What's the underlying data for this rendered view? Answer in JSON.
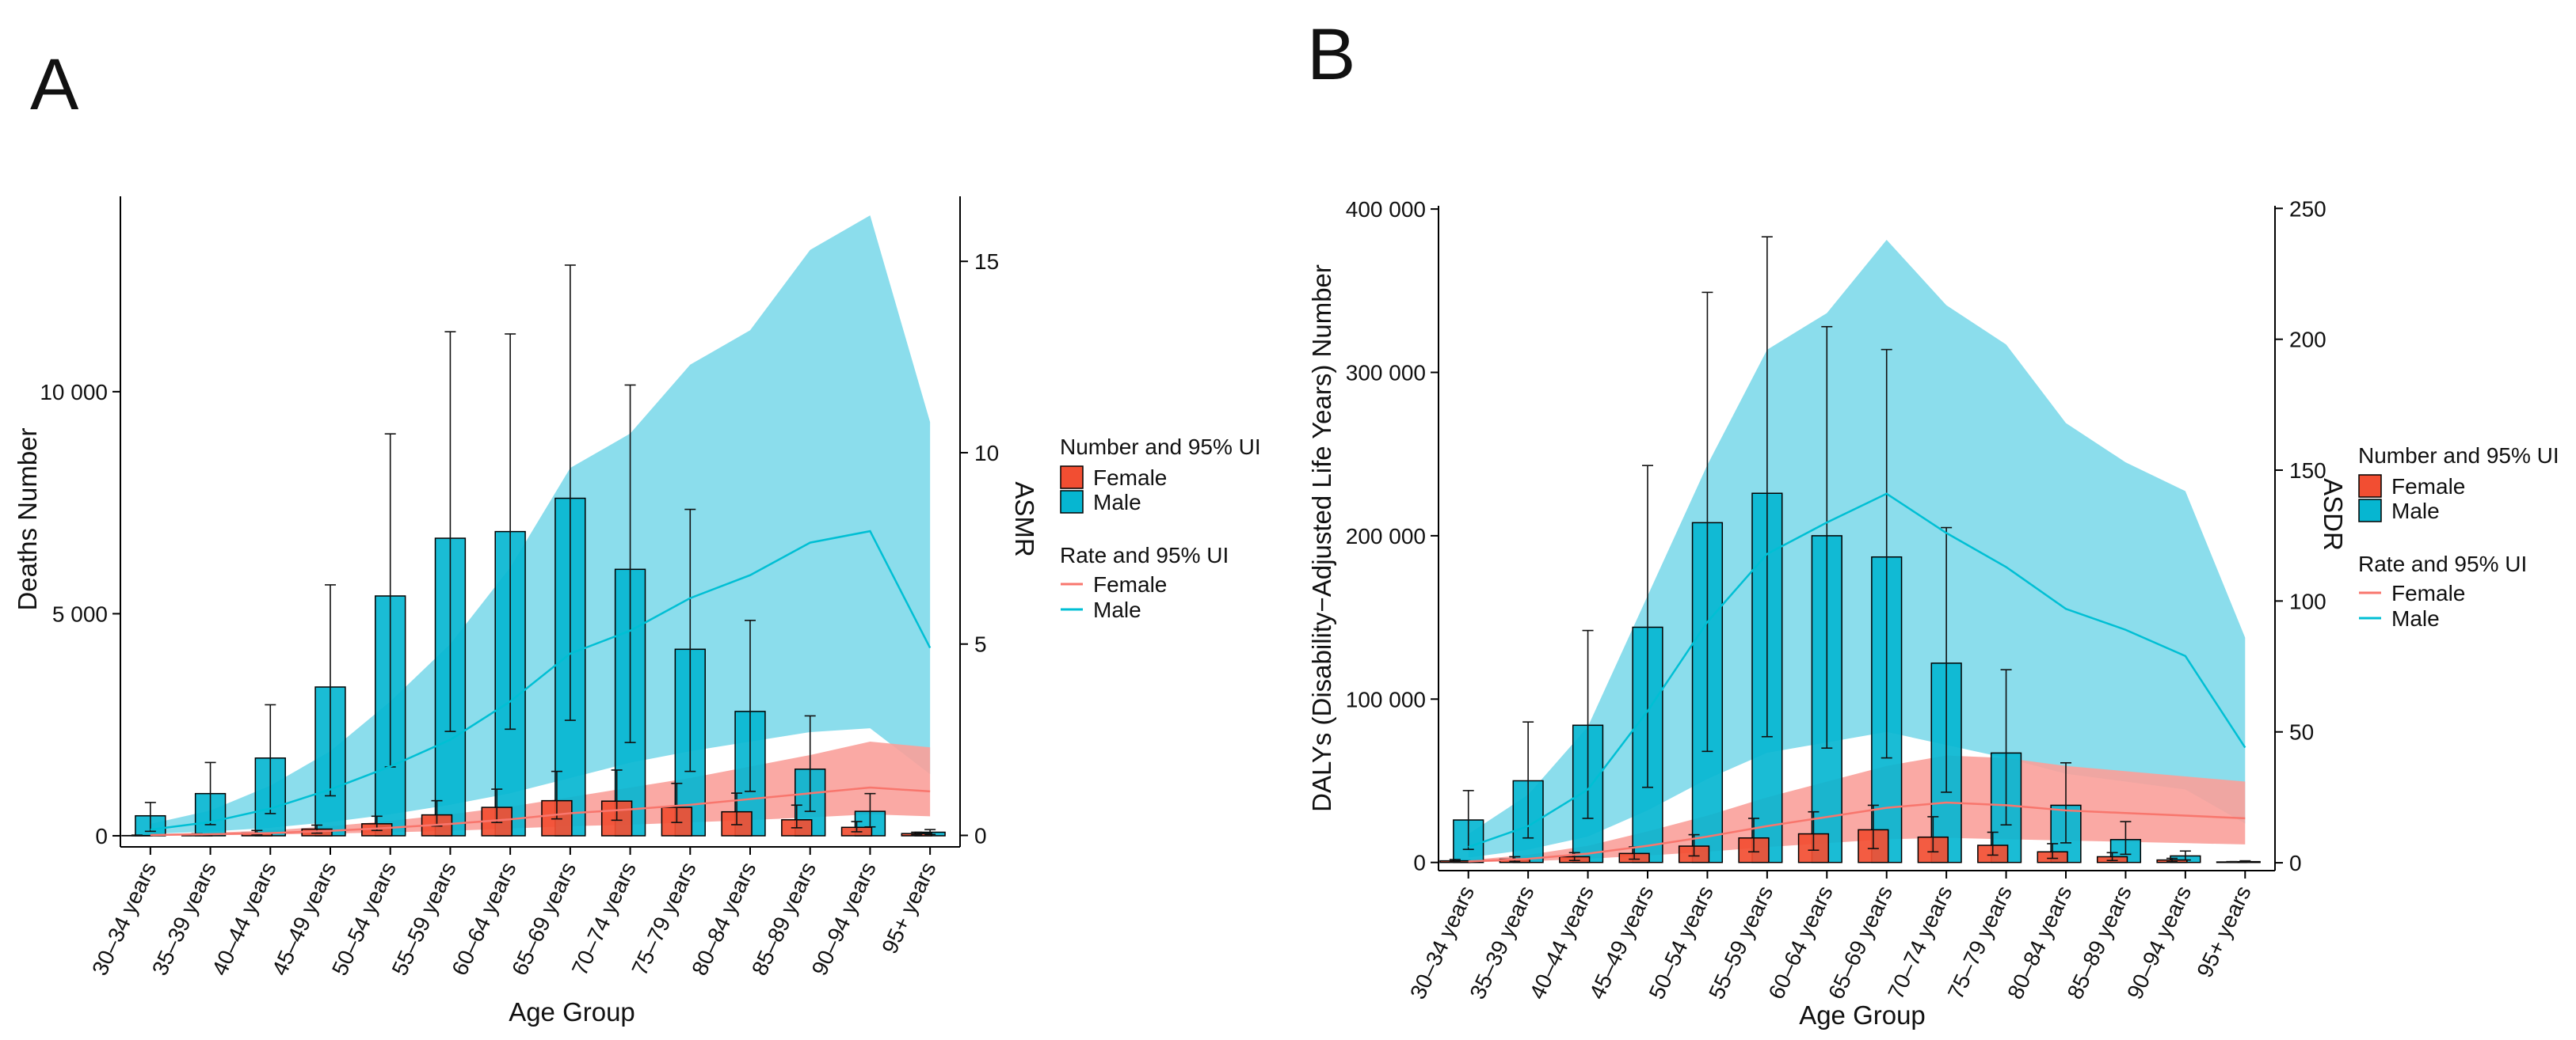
{
  "colors": {
    "female": "#F8766D",
    "female_bar": "#F24E32",
    "male": "#00BFD4",
    "male_bar": "#06B6D1",
    "female_band": "#F9A09A",
    "male_band": "#7ED9EA"
  },
  "chart_data": [
    {
      "type": "bar",
      "panel": "A",
      "title": "",
      "xlabel": "Age Group",
      "ylabel": "Deaths Number",
      "ylabel_right": "ASMR",
      "ylim": [
        -250,
        14400
      ],
      "ylim_right": [
        -0.3,
        16.7
      ],
      "yticks": [
        0,
        5000,
        10000
      ],
      "yticks_labels": [
        "0",
        "5 000",
        "10 000"
      ],
      "yticks_right": [
        0,
        5,
        10,
        15
      ],
      "yticks_right_labels": [
        "0",
        "5",
        "10",
        "15"
      ],
      "categories": [
        "30–34 years",
        "35–39 years",
        "40–44 years",
        "45–49 years",
        "50–54 years",
        "55–59 years",
        "60–64 years",
        "65–69 years",
        "70–74 years",
        "75–79 years",
        "80–84 years",
        "85–89 years",
        "90–94 years",
        "95+ years"
      ],
      "series": [
        {
          "name": "Female",
          "kind": "bar",
          "values": [
            5,
            20,
            60,
            150,
            270,
            470,
            640,
            790,
            780,
            640,
            540,
            360,
            190,
            50
          ],
          "lower": [
            0,
            5,
            20,
            60,
            120,
            220,
            300,
            380,
            350,
            300,
            250,
            180,
            90,
            20
          ],
          "upper": [
            15,
            45,
            120,
            240,
            440,
            790,
            1050,
            1450,
            1480,
            1180,
            960,
            690,
            320,
            80
          ]
        },
        {
          "name": "Male",
          "kind": "bar",
          "values": [
            450,
            950,
            1750,
            3350,
            5400,
            6700,
            6850,
            7600,
            6000,
            4200,
            2800,
            1500,
            550,
            80
          ],
          "lower": [
            100,
            250,
            500,
            900,
            1550,
            2350,
            2400,
            2600,
            2100,
            1450,
            1000,
            550,
            200,
            30
          ],
          "upper": [
            750,
            1650,
            2950,
            5650,
            9050,
            11350,
            11300,
            12850,
            10150,
            7350,
            4850,
            2700,
            950,
            140
          ]
        },
        {
          "name": "Female",
          "kind": "rate",
          "values": [
            0.01,
            0.03,
            0.06,
            0.12,
            0.2,
            0.3,
            0.42,
            0.58,
            0.68,
            0.8,
            0.95,
            1.1,
            1.25,
            1.15
          ],
          "lower": [
            0.0,
            0.01,
            0.02,
            0.05,
            0.08,
            0.12,
            0.18,
            0.24,
            0.28,
            0.34,
            0.4,
            0.47,
            0.55,
            0.5
          ],
          "upper": [
            0.03,
            0.07,
            0.13,
            0.24,
            0.38,
            0.55,
            0.75,
            1.0,
            1.25,
            1.5,
            1.8,
            2.1,
            2.45,
            2.3
          ]
        },
        {
          "name": "Male",
          "kind": "rate",
          "values": [
            0.15,
            0.35,
            0.7,
            1.2,
            1.8,
            2.5,
            3.5,
            4.75,
            5.35,
            6.2,
            6.8,
            7.65,
            7.95,
            4.9
          ],
          "lower": [
            0.04,
            0.1,
            0.2,
            0.35,
            0.55,
            0.8,
            1.1,
            1.5,
            1.9,
            2.2,
            2.45,
            2.7,
            2.8,
            1.6
          ],
          "upper": [
            0.3,
            0.65,
            1.3,
            2.2,
            3.5,
            5.0,
            7.0,
            9.6,
            10.5,
            12.3,
            13.2,
            15.3,
            16.2,
            10.8
          ]
        }
      ],
      "legend": {
        "title_number": "Number and 95% UI",
        "title_rate": "Rate and 95% UI",
        "female": "Female",
        "male": "Male"
      }
    },
    {
      "type": "bar",
      "panel": "B",
      "title": "",
      "xlabel": "Age Group",
      "ylabel": "DALYs (Disability−Adjusted Life Years) Number",
      "ylabel_right": "ASDR",
      "ylim": [
        -5000,
        402000
      ],
      "ylim_right": [
        -3,
        251
      ],
      "yticks": [
        0,
        100000,
        200000,
        300000,
        400000
      ],
      "yticks_labels": [
        "0",
        "100 000",
        "200 000",
        "300 000",
        "400 000"
      ],
      "yticks_right": [
        0,
        50,
        100,
        150,
        200,
        250
      ],
      "yticks_right_labels": [
        "0",
        "50",
        "100",
        "150",
        "200",
        "250"
      ],
      "categories": [
        "30–34 years",
        "35–39 years",
        "40–44 years",
        "45–49 years",
        "50–54 years",
        "55–59 years",
        "60–64 years",
        "65–69 years",
        "70–74 years",
        "75–79 years",
        "80–84 years",
        "85–89 years",
        "90–94 years",
        "95+ years"
      ],
      "series": [
        {
          "name": "Female",
          "kind": "bar",
          "values": [
            1000,
            2000,
            3500,
            5500,
            10000,
            15000,
            17500,
            20000,
            15500,
            10500,
            6500,
            3500,
            1500,
            300
          ],
          "lower": [
            300,
            700,
            1200,
            2000,
            4000,
            6500,
            7500,
            8500,
            6500,
            4500,
            2500,
            1200,
            500,
            100
          ],
          "upper": [
            1800,
            3500,
            6000,
            9500,
            17000,
            27000,
            31000,
            35000,
            28000,
            18500,
            11500,
            6000,
            2500,
            500
          ]
        },
        {
          "name": "Male",
          "kind": "bar",
          "values": [
            26000,
            50000,
            84000,
            144000,
            208000,
            226000,
            200000,
            187000,
            122000,
            67000,
            35000,
            14000,
            4000,
            500
          ],
          "lower": [
            8000,
            15000,
            27000,
            46000,
            68000,
            77000,
            70000,
            64000,
            43000,
            23000,
            12000,
            5000,
            1500,
            200
          ],
          "upper": [
            44000,
            86000,
            142000,
            243000,
            349000,
            383000,
            328000,
            314000,
            205000,
            118000,
            61000,
            25000,
            7000,
            1000
          ]
        },
        {
          "name": "Female",
          "kind": "rate",
          "values": [
            0.5,
            1.5,
            3.5,
            6.5,
            10,
            14,
            17.5,
            21,
            23,
            22,
            20,
            19,
            18,
            17
          ],
          "lower": [
            0.2,
            0.6,
            1.5,
            2.8,
            4.2,
            6,
            7.5,
            9,
            9.5,
            9,
            8.5,
            8,
            7.5,
            7
          ],
          "upper": [
            1,
            3,
            6.5,
            12,
            18,
            25,
            31,
            37,
            41,
            40,
            37,
            35,
            33,
            31
          ]
        },
        {
          "name": "Male",
          "kind": "rate",
          "values": [
            6,
            14,
            28,
            58,
            92,
            118,
            130,
            141,
            126,
            113,
            97,
            89,
            79,
            44
          ],
          "lower": [
            2,
            5,
            10,
            20,
            32,
            42,
            46,
            50,
            45,
            40,
            34,
            31,
            28,
            15
          ],
          "upper": [
            11,
            26,
            52,
            102,
            152,
            196,
            210,
            238,
            213,
            198,
            168,
            153,
            142,
            86
          ]
        }
      ],
      "legend": {
        "title_number": "Number and 95% UI",
        "title_rate": "Rate and 95% UI",
        "female": "Female",
        "male": "Male"
      }
    }
  ]
}
